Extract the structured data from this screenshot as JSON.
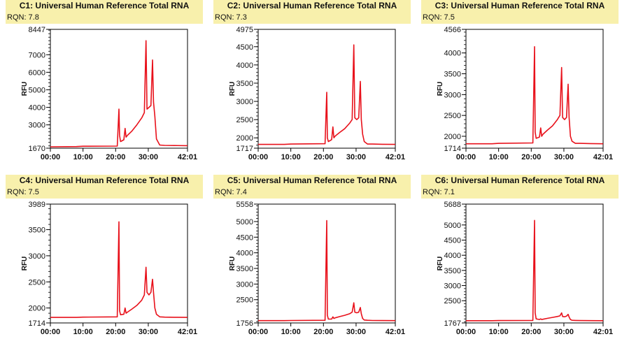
{
  "colors": {
    "trace": "#e8111b",
    "title_bg": "#f8f0ac",
    "axis": "#000000"
  },
  "chart_data": [
    {
      "type": "line",
      "title": "C1: Universal Human Reference Total RNA",
      "subtitle": "RQN: 7.8",
      "ylabel": "RFU",
      "xlabel": "",
      "xlim": [
        0,
        42.02
      ],
      "ylim": [
        1670,
        8447
      ],
      "x_ticks": [
        "00:00",
        "10:00",
        "20:00",
        "30:00",
        "42:01"
      ],
      "y_ticks": [
        1670,
        3000,
        4000,
        5000,
        6000,
        7000,
        8447
      ],
      "x": [
        0,
        8,
        10,
        20.5,
        21.0,
        21.2,
        21.5,
        22.5,
        22.9,
        23.2,
        23.6,
        25,
        26.5,
        28,
        28.8,
        29.3,
        29.6,
        30.2,
        30.8,
        31.3,
        31.6,
        32.0,
        32.5,
        33.5,
        35,
        38,
        42
      ],
      "values": [
        1750,
        1760,
        1780,
        1790,
        3900,
        2400,
        2050,
        2150,
        2800,
        2300,
        2400,
        2650,
        3000,
        3400,
        3700,
        7800,
        3900,
        4000,
        4100,
        6700,
        4300,
        3500,
        2200,
        1850,
        1830,
        1820,
        1815
      ]
    },
    {
      "type": "line",
      "title": "C2: Universal Human Reference Total RNA",
      "subtitle": "RQN: 7.3",
      "ylabel": "RFU",
      "xlabel": "",
      "xlim": [
        0,
        42.02
      ],
      "ylim": [
        1717,
        4975
      ],
      "x_ticks": [
        "00:00",
        "10:00",
        "20:00",
        "30:00",
        "42:01"
      ],
      "y_ticks": [
        1717,
        2000,
        2500,
        3000,
        3500,
        4000,
        4500,
        4975
      ],
      "x": [
        0,
        8,
        10,
        20.5,
        21.0,
        21.2,
        21.5,
        22.5,
        22.9,
        23.2,
        23.6,
        25,
        26.5,
        28,
        28.8,
        29.3,
        29.6,
        30.2,
        30.8,
        31.3,
        31.6,
        32.0,
        32.5,
        33.5,
        35,
        38,
        42
      ],
      "values": [
        1820,
        1820,
        1830,
        1840,
        3250,
        2000,
        1900,
        1950,
        2300,
        2000,
        2050,
        2150,
        2250,
        2400,
        2500,
        4550,
        2550,
        2500,
        2550,
        3550,
        2500,
        2100,
        1900,
        1830,
        1830,
        1825,
        1820
      ]
    },
    {
      "type": "line",
      "title": "C3: Universal Human Reference Total RNA",
      "subtitle": "RQN: 7.5",
      "ylabel": "RFU",
      "xlabel": "",
      "xlim": [
        0,
        42.02
      ],
      "ylim": [
        1714,
        4566
      ],
      "x_ticks": [
        "00:00",
        "10:00",
        "20:00",
        "30:00",
        "42:01"
      ],
      "y_ticks": [
        1714,
        2000,
        2500,
        3000,
        3500,
        4000,
        4566
      ],
      "x": [
        0,
        8,
        10,
        20.5,
        21.0,
        21.2,
        21.5,
        22.5,
        22.9,
        23.2,
        23.6,
        25,
        26.5,
        28,
        28.8,
        29.3,
        29.6,
        30.2,
        30.8,
        31.3,
        31.6,
        32.0,
        32.5,
        33.5,
        35,
        38,
        42
      ],
      "values": [
        1820,
        1820,
        1830,
        1840,
        4150,
        2100,
        1950,
        1980,
        2200,
        2000,
        2050,
        2150,
        2250,
        2400,
        2500,
        3650,
        2450,
        2400,
        2450,
        3250,
        2450,
        2000,
        1880,
        1830,
        1830,
        1825,
        1820
      ]
    },
    {
      "type": "line",
      "title": "C4: Universal Human Reference Total RNA",
      "subtitle": "RQN: 7.5",
      "ylabel": "RFU",
      "xlabel": "",
      "xlim": [
        0,
        42.02
      ],
      "ylim": [
        1714,
        3989
      ],
      "x_ticks": [
        "00:00",
        "10:00",
        "20:00",
        "30:00",
        "42:01"
      ],
      "y_ticks": [
        1714,
        2000,
        2500,
        3000,
        3500,
        3989
      ],
      "x": [
        0,
        8,
        10,
        20.5,
        21.0,
        21.2,
        21.5,
        22.5,
        22.9,
        23.2,
        23.6,
        25,
        26.5,
        28,
        28.8,
        29.3,
        29.6,
        30.2,
        30.8,
        31.3,
        31.6,
        32.0,
        32.5,
        33.5,
        35,
        38,
        42
      ],
      "values": [
        1820,
        1820,
        1825,
        1830,
        3650,
        1950,
        1870,
        1880,
        2000,
        1900,
        1920,
        1980,
        2050,
        2150,
        2250,
        2780,
        2300,
        2250,
        2300,
        2550,
        2300,
        2000,
        1880,
        1830,
        1825,
        1822,
        1820
      ]
    },
    {
      "type": "line",
      "title": "C5: Universal Human Reference Total RNA",
      "subtitle": "RQN: 7.4",
      "ylabel": "RFU",
      "xlabel": "",
      "xlim": [
        0,
        42.02
      ],
      "ylim": [
        1756,
        5558
      ],
      "x_ticks": [
        "00:00",
        "10:00",
        "20:00",
        "30:00",
        "42:01"
      ],
      "y_ticks": [
        1756,
        2500,
        3000,
        3500,
        4000,
        4500,
        5000,
        5558
      ],
      "x": [
        0,
        8,
        10,
        20.5,
        21.0,
        21.2,
        21.5,
        22.5,
        22.9,
        23.2,
        23.6,
        25,
        26.5,
        28,
        28.8,
        29.3,
        29.6,
        30.2,
        30.8,
        31.3,
        31.6,
        32.0,
        32.5,
        33.5,
        35,
        38,
        42
      ],
      "values": [
        1830,
        1830,
        1835,
        1840,
        5030,
        2000,
        1880,
        1880,
        1950,
        1900,
        1920,
        1960,
        2000,
        2050,
        2100,
        2400,
        2100,
        2080,
        2100,
        2250,
        2050,
        1900,
        1850,
        1840,
        1835,
        1832,
        1830
      ]
    },
    {
      "type": "line",
      "title": "C6: Universal Human Reference Total RNA",
      "subtitle": "RQN: 7.1",
      "ylabel": "RFU",
      "xlabel": "",
      "xlim": [
        0,
        42.02
      ],
      "ylim": [
        1767,
        5688
      ],
      "x_ticks": [
        "00:00",
        "10:00",
        "20:00",
        "30:00",
        "42:01"
      ],
      "y_ticks": [
        1767,
        2500,
        3000,
        3500,
        4000,
        4500,
        5000,
        5688
      ],
      "x": [
        0,
        8,
        10,
        20.5,
        21.0,
        21.2,
        21.5,
        22.5,
        22.9,
        23.2,
        23.6,
        25,
        26.5,
        28,
        28.8,
        29.3,
        29.6,
        30.2,
        30.8,
        31.3,
        31.6,
        32.0,
        32.5,
        33.5,
        35,
        38,
        42
      ],
      "values": [
        1840,
        1840,
        1845,
        1850,
        5150,
        2100,
        1900,
        1880,
        1900,
        1880,
        1890,
        1920,
        1950,
        1980,
        2000,
        2100,
        1980,
        1970,
        1990,
        2050,
        1960,
        1880,
        1855,
        1850,
        1845,
        1842,
        1840
      ]
    }
  ]
}
